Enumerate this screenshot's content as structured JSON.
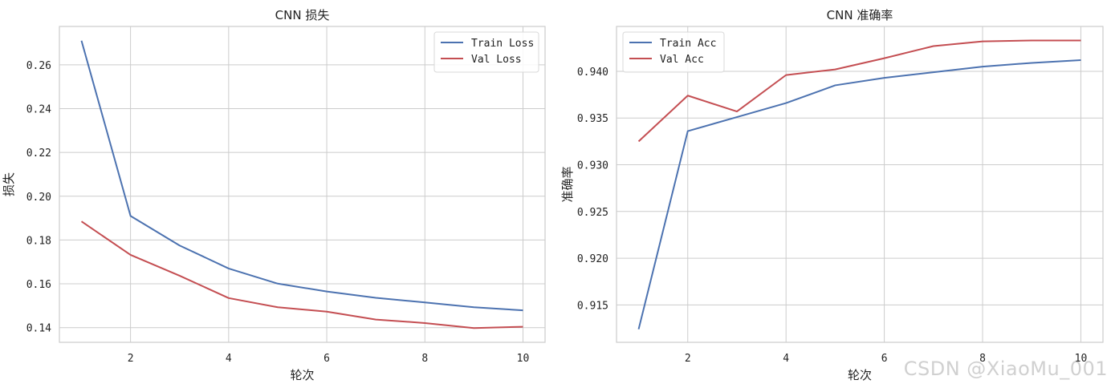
{
  "watermark": "CSDN @XiaoMu_001",
  "chart_data": [
    {
      "type": "line",
      "title": "CNN 损失",
      "xlabel": "轮次",
      "ylabel": "损失",
      "x": [
        1,
        2,
        3,
        4,
        5,
        6,
        7,
        8,
        9,
        10
      ],
      "xticks": [
        2,
        4,
        6,
        8,
        10
      ],
      "yticks": [
        0.14,
        0.16,
        0.18,
        0.2,
        0.22,
        0.24,
        0.26
      ],
      "ytick_labels": [
        "0.14",
        "0.16",
        "0.18",
        "0.20",
        "0.22",
        "0.24",
        "0.26"
      ],
      "xlim": [
        0.55,
        10.45
      ],
      "ylim": [
        0.1333,
        0.2775
      ],
      "grid": true,
      "legend_position": "top-right",
      "series": [
        {
          "name": "Train Loss",
          "color": "#4c72b0",
          "values": [
            0.271,
            0.191,
            0.1775,
            0.167,
            0.1601,
            0.1565,
            0.1536,
            0.1515,
            0.1493,
            0.1479
          ]
        },
        {
          "name": "Val Loss",
          "color": "#c44e52",
          "values": [
            0.1885,
            0.1732,
            0.1637,
            0.1535,
            0.1493,
            0.1473,
            0.1437,
            0.1421,
            0.1398,
            0.1404
          ]
        }
      ]
    },
    {
      "type": "line",
      "title": "CNN 准确率",
      "xlabel": "轮次",
      "ylabel": "准确率",
      "x": [
        1,
        2,
        3,
        4,
        5,
        6,
        7,
        8,
        9,
        10
      ],
      "xticks": [
        2,
        4,
        6,
        8,
        10
      ],
      "yticks": [
        0.915,
        0.92,
        0.925,
        0.93,
        0.935,
        0.94
      ],
      "ytick_labels": [
        "0.915",
        "0.920",
        "0.925",
        "0.930",
        "0.935",
        "0.940"
      ],
      "xlim": [
        0.55,
        10.45
      ],
      "ylim": [
        0.911,
        0.9448
      ],
      "grid": true,
      "legend_position": "top-left",
      "series": [
        {
          "name": "Train Acc",
          "color": "#4c72b0",
          "values": [
            0.9124,
            0.9336,
            0.9351,
            0.9366,
            0.9385,
            0.9393,
            0.9399,
            0.9405,
            0.9409,
            0.9412
          ]
        },
        {
          "name": "Val Acc",
          "color": "#c44e52",
          "values": [
            0.9325,
            0.9374,
            0.9357,
            0.9396,
            0.9402,
            0.9414,
            0.9427,
            0.9432,
            0.9433,
            0.9433
          ]
        }
      ]
    }
  ]
}
